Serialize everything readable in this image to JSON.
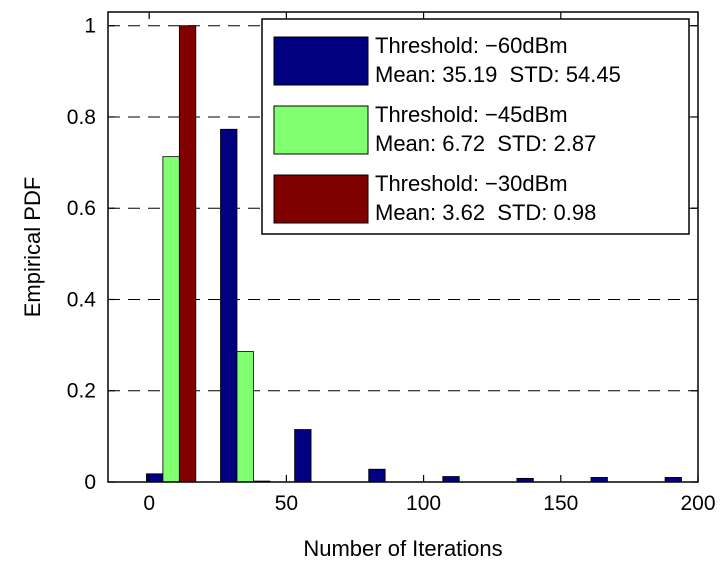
{
  "chart_data": {
    "type": "bar",
    "title": "",
    "xlabel": "Number of Iterations",
    "ylabel": "Empirical PDF",
    "xlim": [
      -15,
      200
    ],
    "ylim": [
      0,
      1.03
    ],
    "xticks": [
      0,
      50,
      100,
      150,
      200
    ],
    "yticks": [
      0,
      0.2,
      0.4,
      0.6,
      0.8,
      1
    ],
    "xtick_labels": [
      "0",
      "50",
      "100",
      "150",
      "200"
    ],
    "ytick_labels": [
      "0",
      "0.2",
      "0.4",
      "0.6",
      "0.8",
      "1"
    ],
    "grid": "horizontal dashed",
    "legend_position": "top-right",
    "series": [
      {
        "name": "Threshold: −60dBm",
        "stats": "Mean: 35.19  STD: 54.45",
        "color": "#000080",
        "x": [
          2,
          29,
          56,
          83,
          110,
          137,
          164,
          191
        ],
        "values": [
          0.018,
          0.773,
          0.115,
          0.028,
          0.012,
          0.008,
          0.01,
          0.01
        ]
      },
      {
        "name": "Threshold: −45dBm",
        "stats": "Mean: 6.72  STD: 2.87",
        "color": "#80ff70",
        "x": [
          8,
          35
        ],
        "values": [
          0.713,
          0.286
        ]
      },
      {
        "name": "Threshold: −30dBm",
        "stats": "Mean: 3.62  STD: 0.98",
        "color": "#800000",
        "x": [
          14,
          41
        ],
        "values": [
          1.0,
          0.002
        ]
      }
    ]
  }
}
